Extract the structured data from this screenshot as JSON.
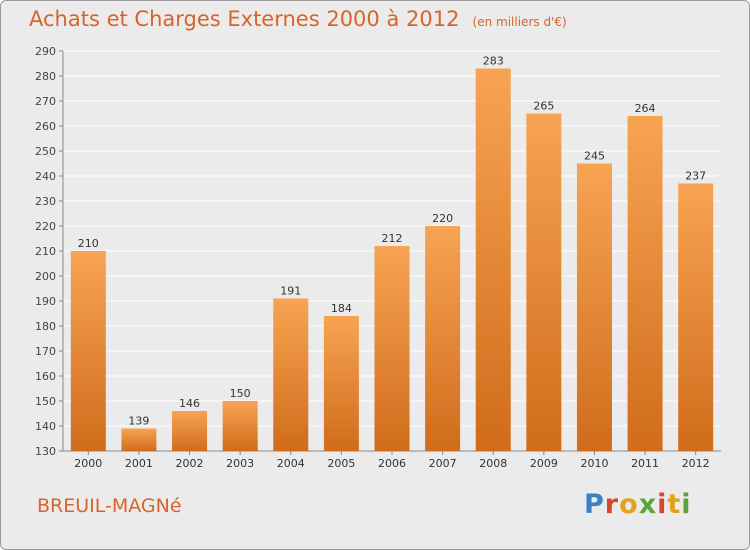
{
  "header": {
    "title": "Achats et Charges Externes 2000 à 2012",
    "subtitle": "(en milliers d'€)"
  },
  "footer": {
    "town": "BREUIL-MAGNé",
    "logo_text": "Proxiti"
  },
  "colors": {
    "bar_top": "#f7a452",
    "bar_bottom": "#d06c1c",
    "title": "#d8642b",
    "grid": "#ffffff",
    "background": "#ebebeb"
  },
  "chart_data": {
    "type": "bar",
    "title": "Achats et Charges Externes 2000 à 2012",
    "subtitle": "(en milliers d'€)",
    "categories": [
      "2000",
      "2001",
      "2002",
      "2003",
      "2004",
      "2005",
      "2006",
      "2007",
      "2008",
      "2009",
      "2010",
      "2011",
      "2012"
    ],
    "values": [
      210,
      139,
      146,
      150,
      191,
      184,
      212,
      220,
      283,
      265,
      245,
      264,
      237
    ],
    "ylim": [
      130,
      290
    ],
    "yticks": [
      130,
      140,
      150,
      160,
      170,
      180,
      190,
      200,
      210,
      220,
      230,
      240,
      250,
      260,
      270,
      280,
      290
    ],
    "grid": true,
    "data_labels": true
  }
}
